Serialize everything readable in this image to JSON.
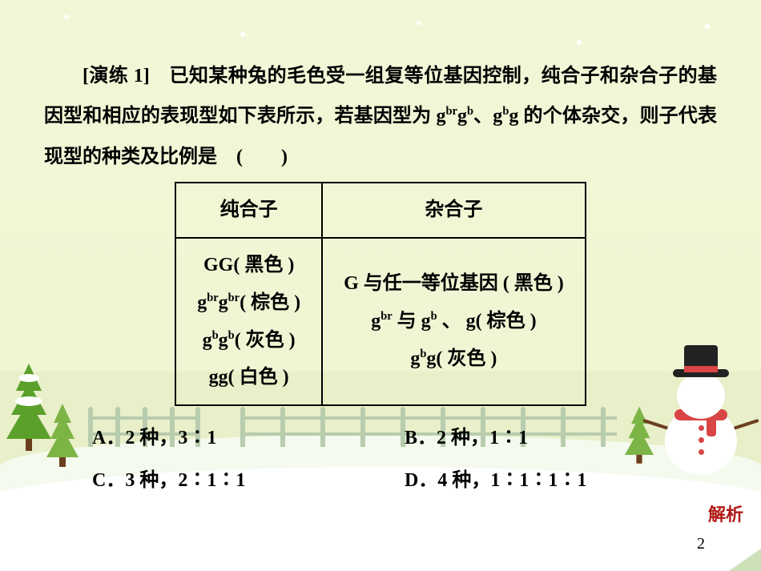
{
  "colors": {
    "bg_top": "#f2f7d8",
    "bg_bottom": "#e8efc9",
    "snow_front": "#ffffff",
    "snow_back": "#f4faed",
    "tree_dark": "#5aa02a",
    "tree_light": "#7cb446",
    "trunk": "#6b3e1e",
    "scarf": "#d94545",
    "hat": "#222222",
    "fence": "#b8ccae",
    "text": "#000000",
    "jiexi": "#b01815"
  },
  "question": {
    "label": "[演练 1]",
    "text_html": "已知某种兔的毛色受一组复等位基因控制，纯合子和杂合子的基因型和相应的表现型如下表所示，若基因型为 g<sup>br</sup>g<sup>b</sup>、g<sup>b</sup>g 的个体杂交，则子代表现型的种类及比例是",
    "paren": "(　　)"
  },
  "table": {
    "headers": [
      "纯合子",
      "杂合子"
    ],
    "left_rows_html": [
      "GG( 黑色 )",
      "g<sup>br</sup>g<sup>br</sup>( 棕色 )",
      "g<sup>b</sup>g<sup>b</sup>( 灰色 )",
      "gg( 白色 )"
    ],
    "right_rows_html": [
      "G 与任一等位基因 ( 黑色 )",
      "g<sup>br</sup> 与 g<sup>b</sup> 、 g( 棕色 )",
      "g<sup>b</sup>g( 灰色 )"
    ]
  },
  "options": {
    "A": "A．2 种，3∶1",
    "B": "B．2 种，1∶1",
    "C": "C．3 种，2∶1∶1",
    "D": "D．4 种，1∶1∶1∶1"
  },
  "jiexi_label": "解析",
  "page_number": "2"
}
